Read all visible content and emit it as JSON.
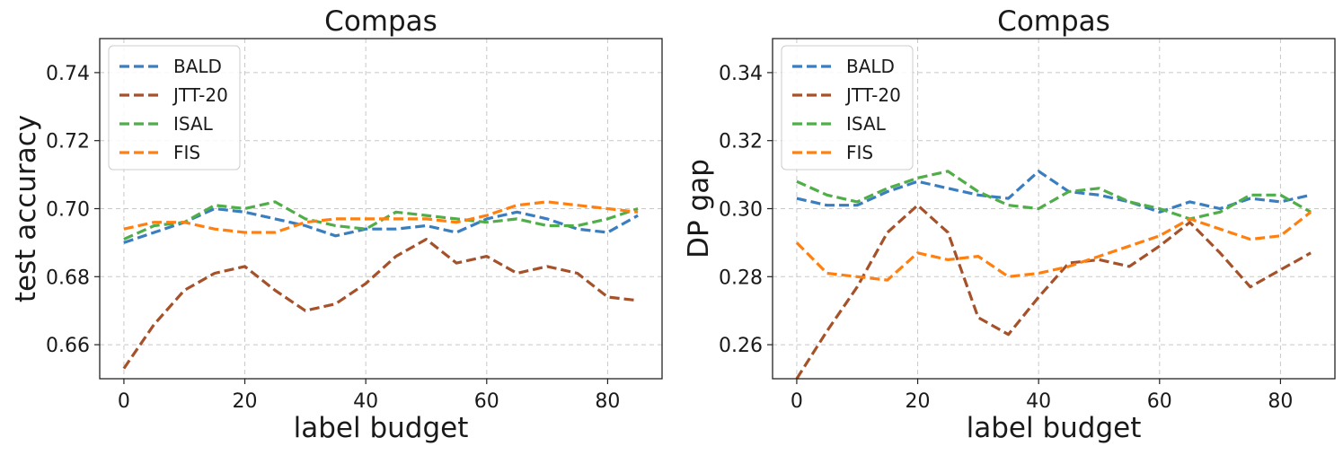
{
  "chart_data": [
    {
      "type": "line",
      "title": "Compas",
      "xlabel": "label budget",
      "ylabel": "test accuracy",
      "xlim": [
        -4,
        89
      ],
      "ylim": [
        0.65,
        0.75
      ],
      "xticks": [
        0,
        20,
        40,
        60,
        80
      ],
      "xtick_labels": [
        "0",
        "20",
        "40",
        "60",
        "80"
      ],
      "yticks": [
        0.66,
        0.68,
        0.7,
        0.72,
        0.74
      ],
      "ytick_labels": [
        "0.66",
        "0.68",
        "0.70",
        "0.72",
        "0.74"
      ],
      "grid": true,
      "legend": "top-left",
      "x": [
        0,
        5,
        10,
        15,
        20,
        25,
        30,
        35,
        40,
        45,
        50,
        55,
        60,
        65,
        70,
        75,
        80,
        85
      ],
      "series": [
        {
          "name": "BALD",
          "color": "#3a7ebf",
          "values": [
            0.69,
            0.693,
            0.696,
            0.7,
            0.699,
            0.697,
            0.695,
            0.692,
            0.694,
            0.694,
            0.695,
            0.693,
            0.697,
            0.699,
            0.697,
            0.694,
            0.693,
            0.698
          ]
        },
        {
          "name": "JTT-20",
          "color": "#a5522b",
          "values": [
            0.653,
            0.666,
            0.676,
            0.681,
            0.683,
            0.676,
            0.67,
            0.672,
            0.678,
            0.686,
            0.691,
            0.684,
            0.686,
            0.681,
            0.683,
            0.681,
            0.674,
            0.673
          ]
        },
        {
          "name": "ISAL",
          "color": "#4fae48",
          "values": [
            0.691,
            0.695,
            0.696,
            0.701,
            0.7,
            0.702,
            0.697,
            0.695,
            0.694,
            0.699,
            0.698,
            0.697,
            0.696,
            0.697,
            0.695,
            0.695,
            0.697,
            0.7
          ]
        },
        {
          "name": "FIS",
          "color": "#ff8010",
          "values": [
            0.694,
            0.696,
            0.696,
            0.694,
            0.693,
            0.693,
            0.696,
            0.697,
            0.697,
            0.697,
            0.697,
            0.696,
            0.698,
            0.701,
            0.702,
            0.701,
            0.7,
            0.699
          ]
        }
      ]
    },
    {
      "type": "line",
      "title": "Compas",
      "xlabel": "label budget",
      "ylabel": "DP gap",
      "xlim": [
        -4,
        89
      ],
      "ylim": [
        0.25,
        0.35
      ],
      "xticks": [
        0,
        20,
        40,
        60,
        80
      ],
      "xtick_labels": [
        "0",
        "20",
        "40",
        "60",
        "80"
      ],
      "yticks": [
        0.26,
        0.28,
        0.3,
        0.32,
        0.34
      ],
      "ytick_labels": [
        "0.26",
        "0.28",
        "0.30",
        "0.32",
        "0.34"
      ],
      "grid": true,
      "legend": "top-left",
      "x": [
        0,
        5,
        10,
        15,
        20,
        25,
        30,
        35,
        40,
        45,
        50,
        55,
        60,
        65,
        70,
        75,
        80,
        85
      ],
      "series": [
        {
          "name": "BALD",
          "color": "#3a7ebf",
          "values": [
            0.303,
            0.301,
            0.301,
            0.305,
            0.308,
            0.306,
            0.304,
            0.303,
            0.311,
            0.305,
            0.304,
            0.302,
            0.299,
            0.302,
            0.3,
            0.303,
            0.302,
            0.304
          ]
        },
        {
          "name": "JTT-20",
          "color": "#a5522b",
          "values": [
            0.25,
            0.264,
            0.277,
            0.293,
            0.301,
            0.293,
            0.268,
            0.263,
            0.274,
            0.284,
            0.285,
            0.283,
            0.289,
            0.296,
            0.287,
            0.277,
            0.282,
            0.287
          ]
        },
        {
          "name": "ISAL",
          "color": "#4fae48",
          "values": [
            0.308,
            0.304,
            0.302,
            0.306,
            0.309,
            0.311,
            0.305,
            0.301,
            0.3,
            0.305,
            0.306,
            0.302,
            0.3,
            0.297,
            0.299,
            0.304,
            0.304,
            0.299
          ]
        },
        {
          "name": "FIS",
          "color": "#ff8010",
          "values": [
            0.29,
            0.281,
            0.28,
            0.279,
            0.287,
            0.285,
            0.286,
            0.28,
            0.281,
            0.283,
            0.286,
            0.289,
            0.292,
            0.297,
            0.294,
            0.291,
            0.292,
            0.299
          ]
        }
      ]
    }
  ]
}
